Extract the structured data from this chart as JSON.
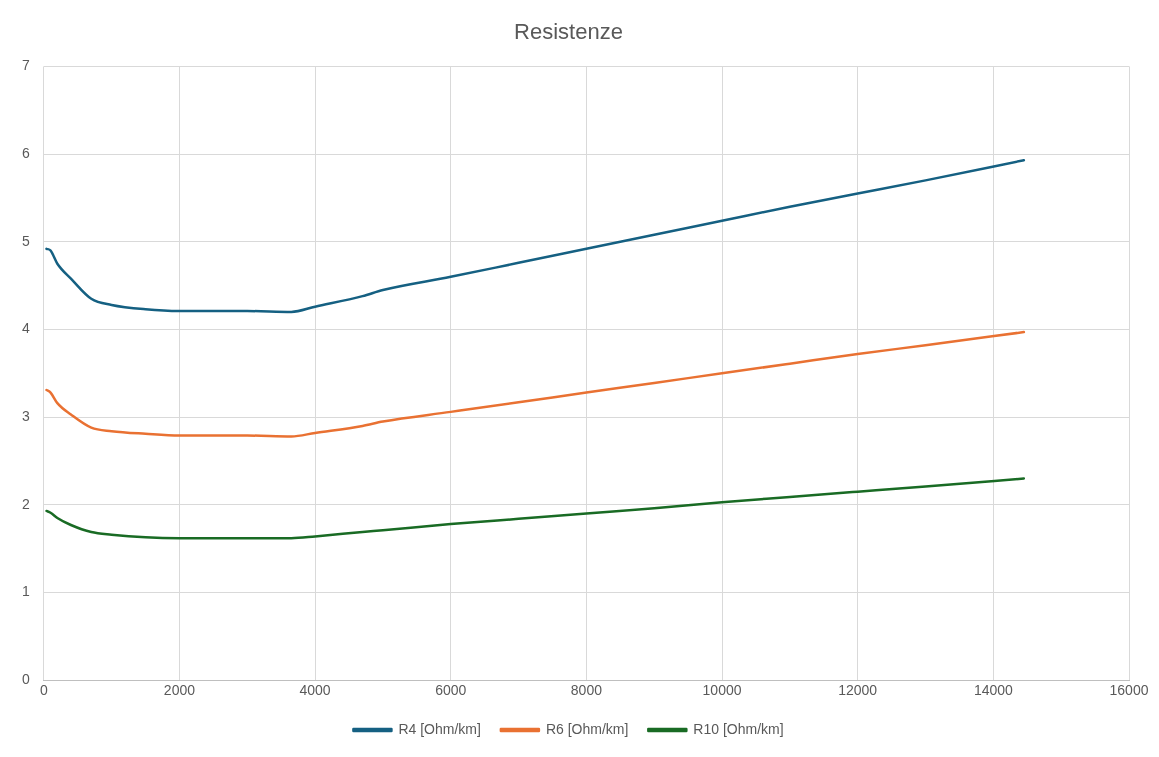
{
  "chart_data": {
    "type": "line",
    "title": "Resistenze",
    "x": [
      40,
      100,
      200,
      400,
      700,
      1000,
      1500,
      2000,
      3000,
      3650,
      4000,
      4700,
      5000,
      6000,
      7000,
      8000,
      9000,
      10000,
      11000,
      12000,
      13000,
      14450
    ],
    "series": [
      {
        "name": "R4 [Ohm/km]",
        "color": "#156082",
        "values": [
          4.92,
          4.9,
          4.75,
          4.58,
          4.35,
          4.28,
          4.23,
          4.21,
          4.21,
          4.2,
          4.26,
          4.38,
          4.45,
          4.6,
          4.76,
          4.92,
          5.08,
          5.24,
          5.4,
          5.55,
          5.7,
          5.93
        ]
      },
      {
        "name": "R6 [Ohm/km]",
        "color": "#e97132",
        "values": [
          3.31,
          3.28,
          3.16,
          3.03,
          2.88,
          2.84,
          2.81,
          2.79,
          2.79,
          2.78,
          2.82,
          2.9,
          2.95,
          3.06,
          3.17,
          3.28,
          3.39,
          3.5,
          3.61,
          3.72,
          3.82,
          3.97
        ]
      },
      {
        "name": "R10 [Ohm/km]",
        "color": "#196b24",
        "values": [
          1.93,
          1.91,
          1.85,
          1.77,
          1.69,
          1.66,
          1.63,
          1.62,
          1.62,
          1.62,
          1.64,
          1.69,
          1.71,
          1.78,
          1.84,
          1.9,
          1.96,
          2.03,
          2.09,
          2.15,
          2.21,
          2.3
        ]
      }
    ],
    "xlim": [
      0,
      16000
    ],
    "xticks": [
      0,
      2000,
      4000,
      6000,
      8000,
      10000,
      12000,
      14000,
      16000
    ],
    "ylim": [
      0,
      7
    ],
    "yticks": [
      0,
      1,
      2,
      3,
      4,
      5,
      6,
      7
    ],
    "grid": true,
    "legend": "bottom",
    "marker": "none",
    "line_style": "solid"
  }
}
